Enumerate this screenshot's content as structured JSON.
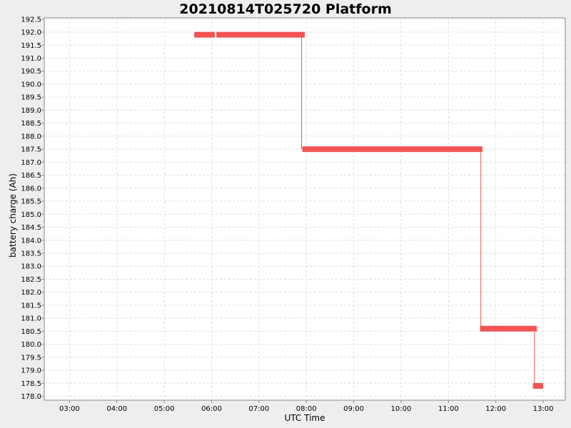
{
  "chart_data": {
    "type": "line",
    "title": "20210814T025720 Platform",
    "xlabel": "UTC Time",
    "ylabel": "battery charge (Ah)",
    "xlim": [
      "02:28",
      "13:28"
    ],
    "ylim": [
      177.85,
      192.55
    ],
    "x_ticks": [
      "03:00",
      "04:00",
      "05:00",
      "06:00",
      "07:00",
      "08:00",
      "09:00",
      "10:00",
      "11:00",
      "12:00",
      "13:00"
    ],
    "y_ticks": [
      "178.0",
      "178.5",
      "179.0",
      "179.5",
      "180.0",
      "180.5",
      "181.0",
      "181.5",
      "182.0",
      "182.5",
      "183.0",
      "183.5",
      "184.0",
      "184.5",
      "185.0",
      "185.5",
      "186.0",
      "186.5",
      "187.0",
      "187.5",
      "188.0",
      "188.5",
      "189.0",
      "189.5",
      "190.0",
      "190.5",
      "191.0",
      "191.5",
      "192.0",
      "192.5"
    ],
    "grid": true,
    "legend": "none",
    "series_color": "#f25454",
    "segments": [
      {
        "start": "05:38",
        "end": "06:04",
        "value": 191.9
      },
      {
        "start": "06:06",
        "end": "07:58",
        "value": 191.9
      },
      {
        "start": "07:55",
        "end": "11:43",
        "value": 187.5
      },
      {
        "start": "11:40",
        "end": "12:52",
        "value": 180.6
      },
      {
        "start": "12:47",
        "end": "13:00",
        "value": 178.4
      }
    ],
    "transitions": [
      {
        "time": "07:54",
        "from": 191.9,
        "to": 187.5
      },
      {
        "time": "11:41",
        "from": 187.5,
        "to": 180.6
      },
      {
        "time": "12:49",
        "from": 180.6,
        "to": 178.4
      }
    ]
  }
}
